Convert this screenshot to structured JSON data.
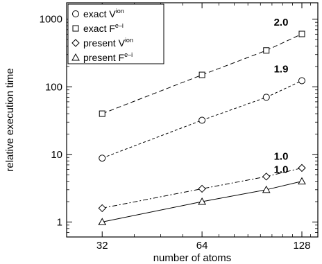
{
  "chart_data": {
    "type": "line",
    "xlabel": "number of atoms",
    "ylabel": "relative execution time",
    "x_scale": "log2",
    "y_scale": "log10",
    "xlim": [
      25,
      143
    ],
    "ylim": [
      0.6,
      1750
    ],
    "x_ticks": [
      32,
      64,
      128
    ],
    "y_ticks": [
      1,
      10,
      100,
      1000
    ],
    "legend_position": "top-left",
    "grid": false,
    "series": [
      {
        "name": "exact V",
        "name_superscript": "ion",
        "marker": "circle",
        "line_style": "dashed-short",
        "x": [
          32,
          64,
          100,
          128
        ],
        "y": [
          8.8,
          32,
          70,
          123
        ],
        "slope_label": "1.9"
      },
      {
        "name": "exact F",
        "name_superscript": "e–i",
        "marker": "square",
        "line_style": "dashed-long",
        "x": [
          32,
          64,
          100,
          128
        ],
        "y": [
          40,
          150,
          345,
          605
        ],
        "slope_label": "2.0"
      },
      {
        "name": "present V",
        "name_superscript": "ion",
        "marker": "diamond",
        "line_style": "dash-dot",
        "x": [
          32,
          64,
          100,
          128
        ],
        "y": [
          1.6,
          3.1,
          4.7,
          6.3
        ],
        "slope_label": "1.0"
      },
      {
        "name": "present F",
        "name_superscript": "e–i",
        "marker": "triangle",
        "line_style": "solid",
        "x": [
          32,
          64,
          100,
          128
        ],
        "y": [
          1.0,
          2.0,
          3.0,
          4.0
        ],
        "slope_label": "1.0"
      }
    ]
  }
}
